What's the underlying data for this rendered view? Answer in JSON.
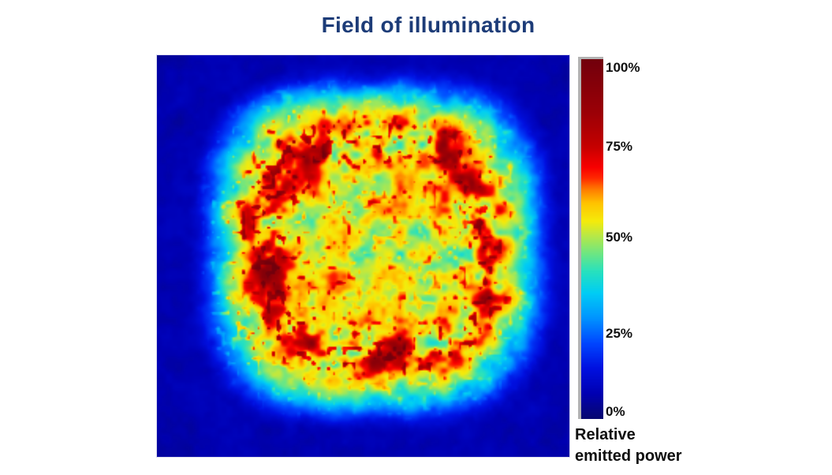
{
  "title": {
    "text": "Field of illumination",
    "color": "#1d3c78"
  },
  "chart_data": {
    "type": "heatmap",
    "title": "Field of illumination",
    "value_unit": "%",
    "value_range": [
      0,
      100
    ],
    "legend_position": "right",
    "grid": "off",
    "colorbar": {
      "orientation": "vertical",
      "ticks": [
        {
          "value": 100,
          "label": "100%"
        },
        {
          "value": 75,
          "label": "75%"
        },
        {
          "value": 50,
          "label": "50%"
        },
        {
          "value": 25,
          "label": "25%"
        },
        {
          "value": 0,
          "label": "0%"
        }
      ],
      "label_lines": [
        "Relative",
        "emitted power"
      ],
      "frame_color": "#b3b3b3",
      "colormap_stops": [
        [
          0.0,
          [
            8,
            8,
            112
          ]
        ],
        [
          0.07,
          [
            0,
            0,
            178
          ]
        ],
        [
          0.14,
          [
            0,
            16,
            224
          ]
        ],
        [
          0.21,
          [
            0,
            70,
            255
          ]
        ],
        [
          0.28,
          [
            0,
            148,
            255
          ]
        ],
        [
          0.35,
          [
            0,
            205,
            245
          ]
        ],
        [
          0.41,
          [
            40,
            225,
            190
          ]
        ],
        [
          0.46,
          [
            110,
            230,
            130
          ]
        ],
        [
          0.51,
          [
            185,
            232,
            70
          ]
        ],
        [
          0.55,
          [
            245,
            235,
            10
          ]
        ],
        [
          0.6,
          [
            255,
            195,
            0
          ]
        ],
        [
          0.64,
          [
            255,
            120,
            0
          ]
        ],
        [
          0.67,
          [
            255,
            40,
            0
          ]
        ],
        [
          0.7,
          [
            248,
            0,
            0
          ]
        ],
        [
          0.76,
          [
            196,
            0,
            0
          ]
        ],
        [
          0.85,
          [
            156,
            0,
            6
          ]
        ],
        [
          1.0,
          [
            114,
            0,
            12
          ]
        ]
      ]
    },
    "field": {
      "description": "Noisy rounded-square illumination plateau: interior ~55% relative power with +/-6% speckle, an orange-red rim at ~65-75% along the plateau edges (strongest on the left side, then bottom and top; weak on the right), fading through a bright cyan halo (~35-40%) into a dark blue background (~8-12%), darkest in the corners.",
      "plateau_percent": 55,
      "rim_percent": 72,
      "halo_percent": 38,
      "background_percent": 10,
      "noise_percent": 6,
      "generator": {
        "seed": 7,
        "grid": [
          262,
          255
        ],
        "center": [
          0.527,
          0.479
        ],
        "half_size": [
          0.3206,
          0.3255
        ],
        "exponent": 3.2,
        "background": 0.085,
        "plateau": 0.475,
        "falloff": [
          0.93,
          1.43
        ],
        "ring": {
          "center": 0.8,
          "width": 0.13,
          "amp": 0.075,
          "left_boost": 1.3,
          "top_boost": 0.45,
          "bottom_boost": 0.55,
          "right_cut": 0.55
        },
        "center_dip": {
          "amp": 0.045,
          "width": 0.45
        },
        "noise": {
          "base": 0.06,
          "plateau_gain": 0.55,
          "ring_gain": 0.8,
          "octaves": [
            [
              0.45,
              14
            ],
            [
              0.35,
              7
            ],
            [
              0.2,
              3.5
            ]
          ]
        },
        "spikes": {
          "threshold": 0.7,
          "amp": 0.9,
          "ring_gain": 1.1,
          "left_gain": 0.8,
          "cap": 0.18
        }
      }
    }
  }
}
